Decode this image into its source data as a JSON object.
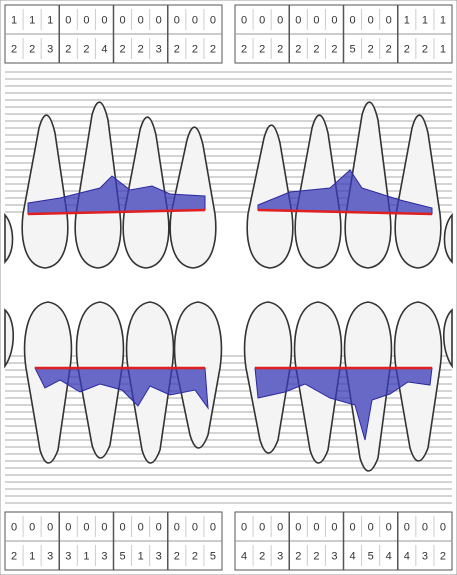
{
  "upper": {
    "left": [
      {
        "top": [
          1,
          1,
          1
        ],
        "bottom": [
          2,
          2,
          3
        ]
      },
      {
        "top": [
          0,
          0,
          0
        ],
        "bottom": [
          2,
          2,
          4
        ]
      },
      {
        "top": [
          0,
          0,
          0
        ],
        "bottom": [
          2,
          2,
          3
        ]
      },
      {
        "top": [
          0,
          0,
          0
        ],
        "bottom": [
          2,
          2,
          2
        ]
      }
    ],
    "right": [
      {
        "top": [
          0,
          0,
          0
        ],
        "bottom": [
          2,
          2,
          2
        ]
      },
      {
        "top": [
          0,
          0,
          0
        ],
        "bottom": [
          2,
          2,
          2
        ]
      },
      {
        "top": [
          0,
          0,
          0
        ],
        "bottom": [
          5,
          2,
          2
        ]
      },
      {
        "top": [
          1,
          1,
          1
        ],
        "bottom": [
          2,
          2,
          1
        ]
      }
    ]
  },
  "lower": {
    "left": [
      {
        "top": [
          0,
          0,
          0
        ],
        "bottom": [
          2,
          1,
          3
        ]
      },
      {
        "top": [
          0,
          0,
          0
        ],
        "bottom": [
          3,
          1,
          3
        ]
      },
      {
        "top": [
          0,
          0,
          0
        ],
        "bottom": [
          5,
          1,
          3
        ]
      },
      {
        "top": [
          0,
          0,
          0
        ],
        "bottom": [
          2,
          2,
          5
        ]
      }
    ],
    "right": [
      {
        "top": [
          0,
          0,
          0
        ],
        "bottom": [
          4,
          2,
          3
        ]
      },
      {
        "top": [
          0,
          0,
          0
        ],
        "bottom": [
          2,
          2,
          3
        ]
      },
      {
        "top": [
          0,
          0,
          0
        ],
        "bottom": [
          4,
          5,
          4
        ]
      },
      {
        "top": [
          0,
          0,
          0
        ],
        "bottom": [
          4,
          3,
          2
        ]
      }
    ]
  },
  "highlight": {
    "color": "#e02020",
    "min": 4
  }
}
